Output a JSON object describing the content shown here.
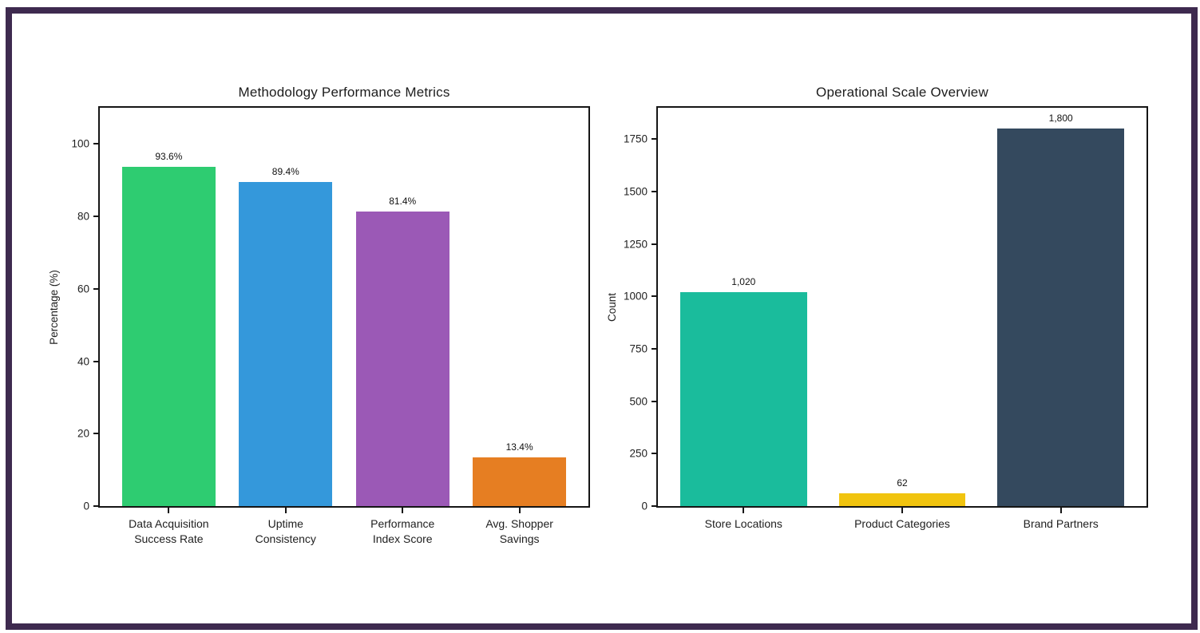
{
  "page": {
    "background": "#ffffff",
    "frame_border_color": "#3e2a4f"
  },
  "chart_data": [
    {
      "type": "bar",
      "title": "Methodology Performance Metrics",
      "xlabel": "",
      "ylabel": "Percentage (%)",
      "categories": [
        "Data Acquisition\nSuccess Rate",
        "Uptime\nConsistency",
        "Performance\nIndex Score",
        "Avg. Shopper\nSavings"
      ],
      "values": [
        93.6,
        89.4,
        81.4,
        13.4
      ],
      "value_labels": [
        "93.6%",
        "89.4%",
        "81.4%",
        "13.4%"
      ],
      "bar_colors": [
        "#2ecc71",
        "#3498db",
        "#9b59b6",
        "#e67e22"
      ],
      "ylim": [
        0,
        110
      ],
      "yticks": [
        0,
        20,
        40,
        60,
        80,
        100
      ],
      "bar_width_ratio": 0.8,
      "grid": false,
      "legend": "none"
    },
    {
      "type": "bar",
      "title": "Operational Scale Overview",
      "xlabel": "",
      "ylabel": "Count",
      "categories": [
        "Store Locations",
        "Product Categories",
        "Brand Partners"
      ],
      "values": [
        1020,
        62,
        1800
      ],
      "value_labels": [
        "1,020",
        "62",
        "1,800"
      ],
      "bar_colors": [
        "#1abc9c",
        "#f1c40f",
        "#34495e"
      ],
      "ylim": [
        0,
        1900
      ],
      "yticks": [
        0,
        250,
        500,
        750,
        1000,
        1250,
        1500,
        1750
      ],
      "bar_width_ratio": 0.8,
      "grid": false,
      "legend": "none"
    }
  ]
}
